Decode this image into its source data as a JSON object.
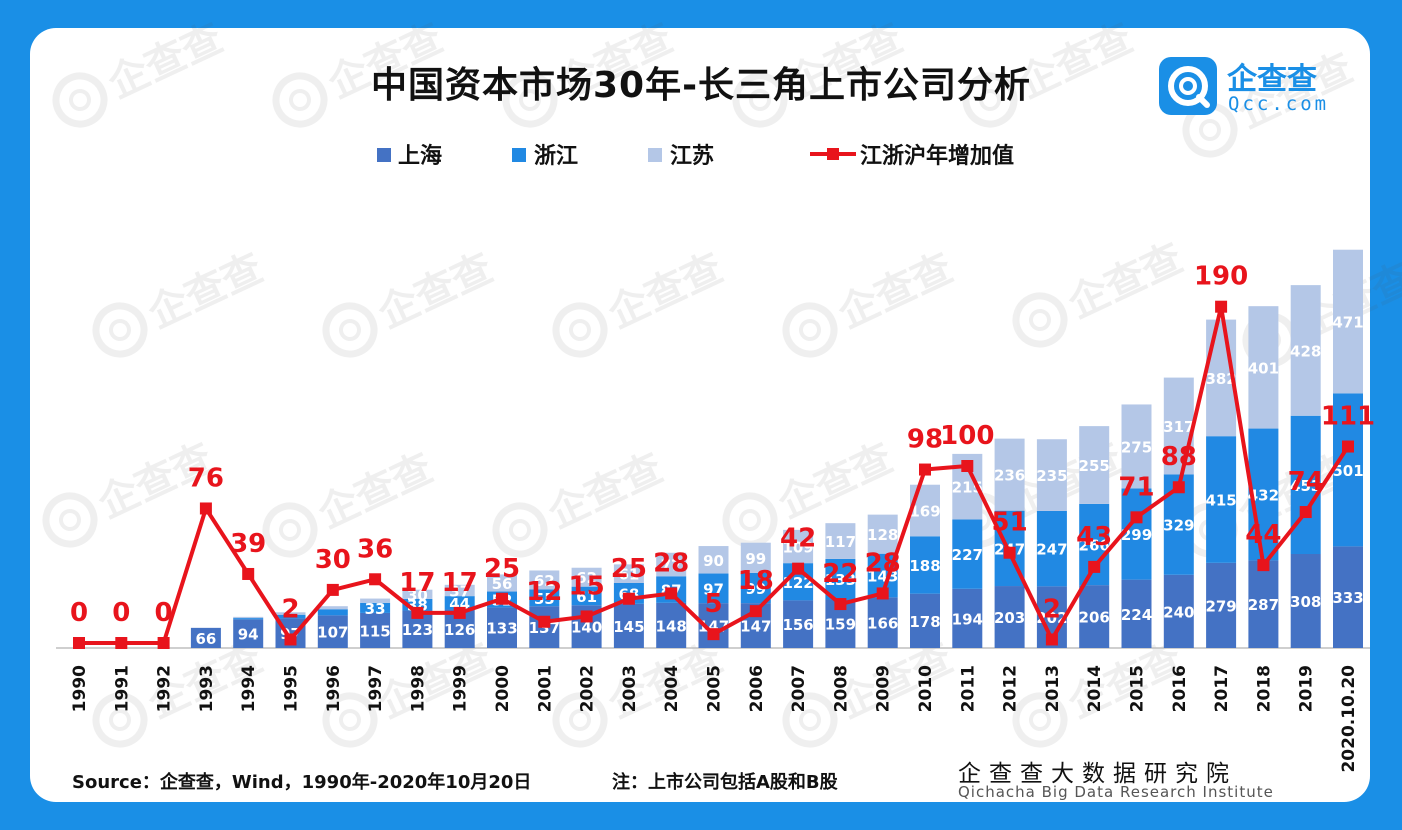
{
  "title": "中国资本市场30年-长三角上市公司分析",
  "logo": {
    "cn": "企查查",
    "en": "Qcc.com",
    "color": "#1a8fe6"
  },
  "watermark": "企查查",
  "legend": {
    "shanghai": "上海",
    "zhejiang": "浙江",
    "jiangsu": "江苏",
    "line": "江浙沪年增加值"
  },
  "colors": {
    "shanghai": "#4472c4",
    "zhejiang": "#2189e3",
    "jiangsu": "#b4c7e7",
    "line": "#e8141c",
    "bg": "#1a8fe6"
  },
  "footer": {
    "source": "Source：企查查，Wind，1990年-2020年10月20日",
    "note": "注：上市公司包括A股和B股",
    "institute_cn": "企查查大数据研究院",
    "institute_en": "Qichacha Big Data Research Institute"
  },
  "chart_data": {
    "type": "bar",
    "title": "中国资本市场30年-长三角上市公司分析",
    "stacked": true,
    "categories": [
      "1990",
      "1991",
      "1992",
      "1993",
      "1994",
      "1995",
      "1996",
      "1997",
      "1998",
      "1999",
      "2000",
      "2001",
      "2002",
      "2003",
      "2004",
      "2005",
      "2006",
      "2007",
      "2008",
      "2009",
      "2010",
      "2011",
      "2012",
      "2013",
      "2014",
      "2015",
      "2016",
      "2017",
      "2018",
      "2019",
      "2020.10.20"
    ],
    "series": [
      {
        "name": "上海",
        "values": [
          0,
          0,
          0,
          66,
          94,
          97,
          107,
          115,
          123,
          126,
          133,
          137,
          140,
          145,
          148,
          147,
          147,
          156,
          159,
          166,
          178,
          194,
          203,
          202,
          206,
          224,
          240,
          279,
          287,
          308,
          333
        ]
      },
      {
        "name": "浙江",
        "values": [
          0,
          0,
          0,
          0,
          4,
          12,
          20,
          33,
          38,
          44,
          52,
          55,
          61,
          68,
          87,
          97,
          99,
          122,
          133,
          143,
          188,
          227,
          247,
          247,
          266,
          299,
          329,
          415,
          432,
          453,
          501
        ]
      },
      {
        "name": "江苏",
        "values": [
          0,
          0,
          0,
          0,
          4,
          8,
          10,
          14,
          30,
          37,
          56,
          62,
          62,
          61,
          77,
          90,
          99,
          109,
          117,
          128,
          169,
          215,
          236,
          235,
          255,
          275,
          317,
          382,
          401,
          428,
          471
        ]
      }
    ],
    "line": {
      "name": "江浙沪年增加值",
      "values": [
        0,
        0,
        0,
        76,
        39,
        2,
        30,
        36,
        17,
        17,
        25,
        12,
        15,
        25,
        28,
        5,
        18,
        42,
        22,
        28,
        98,
        100,
        51,
        2,
        43,
        71,
        88,
        190,
        44,
        74,
        111
      ]
    },
    "ylim": [
      0,
      1350
    ],
    "xlabel": "",
    "ylabel": ""
  }
}
